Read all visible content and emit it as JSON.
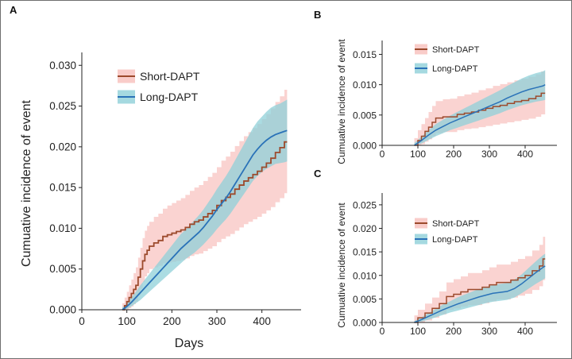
{
  "colors": {
    "short_line": "#9c4a2c",
    "short_band": "#f7b6b2",
    "long_line": "#2a72b8",
    "long_band": "#8fd0d8"
  },
  "chart_data": [
    {
      "panel": "A",
      "type": "line",
      "xlabel": "Days",
      "ylabel": "Cumuative incidence of event",
      "xlim": [
        0,
        480
      ],
      "ylim": [
        0,
        0.031
      ],
      "xticks": [
        0,
        100,
        200,
        300,
        400
      ],
      "yticks": [
        0.0,
        0.005,
        0.01,
        0.015,
        0.02,
        0.025,
        0.03
      ],
      "ytick_labels": [
        "0.000",
        "0.005",
        "0.010",
        "0.015",
        "0.020",
        "0.025",
        "0.030"
      ],
      "legend_position": "top-left",
      "series": [
        {
          "name": "Short-DAPT",
          "style": "step",
          "x": [
            90,
            95,
            100,
            105,
            110,
            115,
            120,
            125,
            130,
            135,
            140,
            145,
            150,
            160,
            170,
            180,
            190,
            200,
            210,
            220,
            230,
            240,
            250,
            260,
            270,
            280,
            290,
            300,
            310,
            320,
            330,
            340,
            350,
            360,
            370,
            380,
            390,
            400,
            410,
            420,
            430,
            440,
            450,
            456
          ],
          "y": [
            0,
            0.0005,
            0.001,
            0.0015,
            0.002,
            0.0025,
            0.003,
            0.004,
            0.005,
            0.006,
            0.0068,
            0.0073,
            0.0078,
            0.0082,
            0.0085,
            0.009,
            0.0092,
            0.0094,
            0.0096,
            0.0098,
            0.0101,
            0.0105,
            0.0108,
            0.011,
            0.0114,
            0.0118,
            0.0122,
            0.0128,
            0.0134,
            0.0138,
            0.0142,
            0.0148,
            0.0153,
            0.0158,
            0.0162,
            0.0166,
            0.017,
            0.0175,
            0.018,
            0.0186,
            0.0193,
            0.0199,
            0.0206,
            0.0206
          ],
          "lower": [
            0,
            0,
            0,
            0.0002,
            0.0004,
            0.0007,
            0.001,
            0.0018,
            0.0026,
            0.0034,
            0.0041,
            0.0045,
            0.005,
            0.0052,
            0.0054,
            0.0057,
            0.0058,
            0.0059,
            0.006,
            0.0061,
            0.0063,
            0.0066,
            0.0068,
            0.0069,
            0.0072,
            0.0075,
            0.0078,
            0.0083,
            0.0087,
            0.009,
            0.0093,
            0.0097,
            0.0101,
            0.0105,
            0.0108,
            0.0111,
            0.0114,
            0.0118,
            0.0122,
            0.0126,
            0.0132,
            0.0137,
            0.0143,
            0.0143
          ],
          "upper": [
            0.0008,
            0.0015,
            0.0022,
            0.003,
            0.0037,
            0.0045,
            0.0052,
            0.0064,
            0.0076,
            0.0088,
            0.0097,
            0.0103,
            0.0108,
            0.0114,
            0.0118,
            0.0124,
            0.0128,
            0.0131,
            0.0134,
            0.0137,
            0.0141,
            0.0146,
            0.015,
            0.0153,
            0.0158,
            0.0163,
            0.0168,
            0.0175,
            0.0183,
            0.0188,
            0.0194,
            0.0201,
            0.0207,
            0.0213,
            0.0218,
            0.0223,
            0.0228,
            0.0234,
            0.024,
            0.0247,
            0.0255,
            0.0262,
            0.027,
            0.027
          ]
        },
        {
          "name": "Long-DAPT",
          "style": "smooth",
          "x": [
            90,
            100,
            110,
            120,
            130,
            140,
            150,
            160,
            170,
            180,
            190,
            200,
            210,
            220,
            230,
            240,
            250,
            260,
            270,
            280,
            290,
            300,
            310,
            320,
            330,
            340,
            350,
            360,
            370,
            380,
            390,
            400,
            410,
            420,
            430,
            440,
            450,
            456
          ],
          "y": [
            0,
            0.0004,
            0.0009,
            0.0015,
            0.0021,
            0.0027,
            0.0033,
            0.0039,
            0.0045,
            0.0051,
            0.0057,
            0.0063,
            0.0069,
            0.0075,
            0.008,
            0.0085,
            0.009,
            0.0095,
            0.0101,
            0.0108,
            0.0115,
            0.0123,
            0.013,
            0.0137,
            0.0145,
            0.0154,
            0.0163,
            0.0172,
            0.0181,
            0.019,
            0.0197,
            0.0203,
            0.0208,
            0.0212,
            0.0215,
            0.0217,
            0.0219,
            0.022
          ],
          "lower": [
            0,
            0.0001,
            0.0004,
            0.0008,
            0.0012,
            0.0017,
            0.0022,
            0.0027,
            0.0032,
            0.0037,
            0.0042,
            0.0047,
            0.0052,
            0.0057,
            0.0062,
            0.0066,
            0.007,
            0.0075,
            0.008,
            0.0086,
            0.0092,
            0.0099,
            0.0105,
            0.0111,
            0.0118,
            0.0126,
            0.0134,
            0.0142,
            0.015,
            0.0158,
            0.0164,
            0.0169,
            0.0173,
            0.0176,
            0.0179,
            0.018,
            0.0181,
            0.0182
          ],
          "upper": [
            0.0003,
            0.0008,
            0.0015,
            0.0022,
            0.003,
            0.0037,
            0.0044,
            0.0051,
            0.0058,
            0.0065,
            0.0072,
            0.0079,
            0.0086,
            0.0093,
            0.0098,
            0.0104,
            0.011,
            0.0116,
            0.0123,
            0.0131,
            0.0139,
            0.0148,
            0.0156,
            0.0164,
            0.0173,
            0.0183,
            0.0193,
            0.0203,
            0.0213,
            0.0223,
            0.0231,
            0.0237,
            0.0243,
            0.0248,
            0.0251,
            0.0253,
            0.0256,
            0.0258
          ]
        }
      ]
    },
    {
      "panel": "B",
      "type": "line",
      "xlabel": "",
      "ylabel": "Cumuative incidence of event",
      "xlim": [
        0,
        480
      ],
      "ylim": [
        0,
        0.0165
      ],
      "xticks": [
        0,
        100,
        200,
        300,
        400
      ],
      "yticks": [
        0.0,
        0.005,
        0.01,
        0.015
      ],
      "ytick_labels": [
        "0.000",
        "0.005",
        "0.010",
        "0.015"
      ],
      "legend_position": "top-left",
      "series": [
        {
          "name": "Short-DAPT",
          "style": "step",
          "x": [
            90,
            100,
            110,
            120,
            130,
            140,
            150,
            170,
            190,
            210,
            230,
            250,
            270,
            290,
            310,
            330,
            350,
            370,
            390,
            410,
            430,
            445,
            456
          ],
          "y": [
            0,
            0.0008,
            0.0015,
            0.0023,
            0.003,
            0.0038,
            0.0045,
            0.0047,
            0.0047,
            0.0051,
            0.0053,
            0.0055,
            0.0058,
            0.0061,
            0.0064,
            0.0066,
            0.0069,
            0.0072,
            0.0074,
            0.0077,
            0.0081,
            0.0086,
            0.0086
          ],
          "lower": [
            0,
            0,
            0.0002,
            0.0006,
            0.001,
            0.0015,
            0.002,
            0.0022,
            0.0022,
            0.0025,
            0.0027,
            0.0028,
            0.003,
            0.0032,
            0.0034,
            0.0036,
            0.0038,
            0.004,
            0.0042,
            0.0044,
            0.0047,
            0.0051,
            0.0051
          ],
          "upper": [
            0.0012,
            0.0025,
            0.0035,
            0.0045,
            0.0055,
            0.0065,
            0.0073,
            0.0076,
            0.0077,
            0.0081,
            0.0084,
            0.0087,
            0.0091,
            0.0094,
            0.0098,
            0.0101,
            0.0104,
            0.0107,
            0.011,
            0.0113,
            0.0117,
            0.0122,
            0.0122
          ]
        },
        {
          "name": "Long-DAPT",
          "style": "smooth",
          "x": [
            90,
            110,
            130,
            150,
            170,
            190,
            210,
            230,
            250,
            270,
            290,
            310,
            330,
            350,
            370,
            390,
            410,
            430,
            450,
            456
          ],
          "y": [
            0,
            0.0008,
            0.0017,
            0.0025,
            0.0031,
            0.0037,
            0.0042,
            0.0047,
            0.0052,
            0.0057,
            0.0062,
            0.0067,
            0.0072,
            0.0078,
            0.0083,
            0.0088,
            0.0092,
            0.0095,
            0.0098,
            0.01
          ],
          "lower": [
            0,
            0.0003,
            0.0009,
            0.0015,
            0.002,
            0.0025,
            0.0029,
            0.0033,
            0.0037,
            0.0041,
            0.0045,
            0.0049,
            0.0053,
            0.0058,
            0.0062,
            0.0066,
            0.0069,
            0.0072,
            0.0074,
            0.0075
          ],
          "upper": [
            0.0004,
            0.0014,
            0.0025,
            0.0035,
            0.0042,
            0.0049,
            0.0055,
            0.0061,
            0.0067,
            0.0073,
            0.0079,
            0.0085,
            0.0091,
            0.0098,
            0.0104,
            0.011,
            0.0115,
            0.0119,
            0.0122,
            0.0124
          ]
        }
      ]
    },
    {
      "panel": "C",
      "type": "line",
      "xlabel": "",
      "ylabel": "Cumuative incidence of event",
      "xlim": [
        0,
        480
      ],
      "ylim": [
        0,
        0.0265
      ],
      "xticks": [
        0,
        100,
        200,
        300,
        400
      ],
      "yticks": [
        0.0,
        0.005,
        0.01,
        0.015,
        0.02,
        0.025
      ],
      "ytick_labels": [
        "0.000",
        "0.005",
        "0.010",
        "0.015",
        "0.020",
        "0.025"
      ],
      "legend_position": "top-left",
      "series": [
        {
          "name": "Short-DAPT",
          "style": "step",
          "x": [
            90,
            100,
            120,
            140,
            160,
            180,
            200,
            220,
            240,
            260,
            280,
            300,
            320,
            340,
            360,
            380,
            400,
            420,
            440,
            450,
            456
          ],
          "y": [
            0,
            0.001,
            0.002,
            0.003,
            0.004,
            0.0055,
            0.006,
            0.0065,
            0.007,
            0.007,
            0.0075,
            0.008,
            0.0085,
            0.0085,
            0.009,
            0.0095,
            0.01,
            0.011,
            0.012,
            0.0135,
            0.0135
          ],
          "lower": [
            0,
            0,
            0.0004,
            0.001,
            0.0017,
            0.0027,
            0.003,
            0.0034,
            0.0037,
            0.0037,
            0.0041,
            0.0045,
            0.0049,
            0.0049,
            0.0053,
            0.0057,
            0.0061,
            0.0069,
            0.0077,
            0.009,
            0.009
          ],
          "upper": [
            0.0015,
            0.0027,
            0.004,
            0.0053,
            0.0066,
            0.0085,
            0.0092,
            0.0098,
            0.0105,
            0.0105,
            0.0111,
            0.0117,
            0.0123,
            0.0123,
            0.0129,
            0.0135,
            0.0141,
            0.0153,
            0.0165,
            0.0182,
            0.0182
          ]
        },
        {
          "name": "Long-DAPT",
          "style": "smooth",
          "x": [
            90,
            110,
            130,
            150,
            170,
            190,
            210,
            230,
            250,
            270,
            290,
            310,
            330,
            350,
            370,
            390,
            410,
            430,
            450,
            456
          ],
          "y": [
            0,
            0.0006,
            0.0013,
            0.002,
            0.0027,
            0.0033,
            0.0039,
            0.0044,
            0.0049,
            0.0054,
            0.0058,
            0.0062,
            0.0064,
            0.0066,
            0.0072,
            0.0082,
            0.0094,
            0.0106,
            0.0117,
            0.012
          ],
          "lower": [
            0,
            0.0002,
            0.0006,
            0.0011,
            0.0016,
            0.0021,
            0.0025,
            0.0029,
            0.0033,
            0.0037,
            0.0041,
            0.0044,
            0.0046,
            0.0048,
            0.0053,
            0.0062,
            0.0072,
            0.0082,
            0.0091,
            0.0094
          ],
          "upper": [
            0.0003,
            0.0011,
            0.002,
            0.0029,
            0.0038,
            0.0045,
            0.0053,
            0.0059,
            0.0065,
            0.0071,
            0.0075,
            0.008,
            0.0082,
            0.0084,
            0.0091,
            0.0102,
            0.0116,
            0.013,
            0.0143,
            0.0146
          ]
        }
      ]
    }
  ]
}
